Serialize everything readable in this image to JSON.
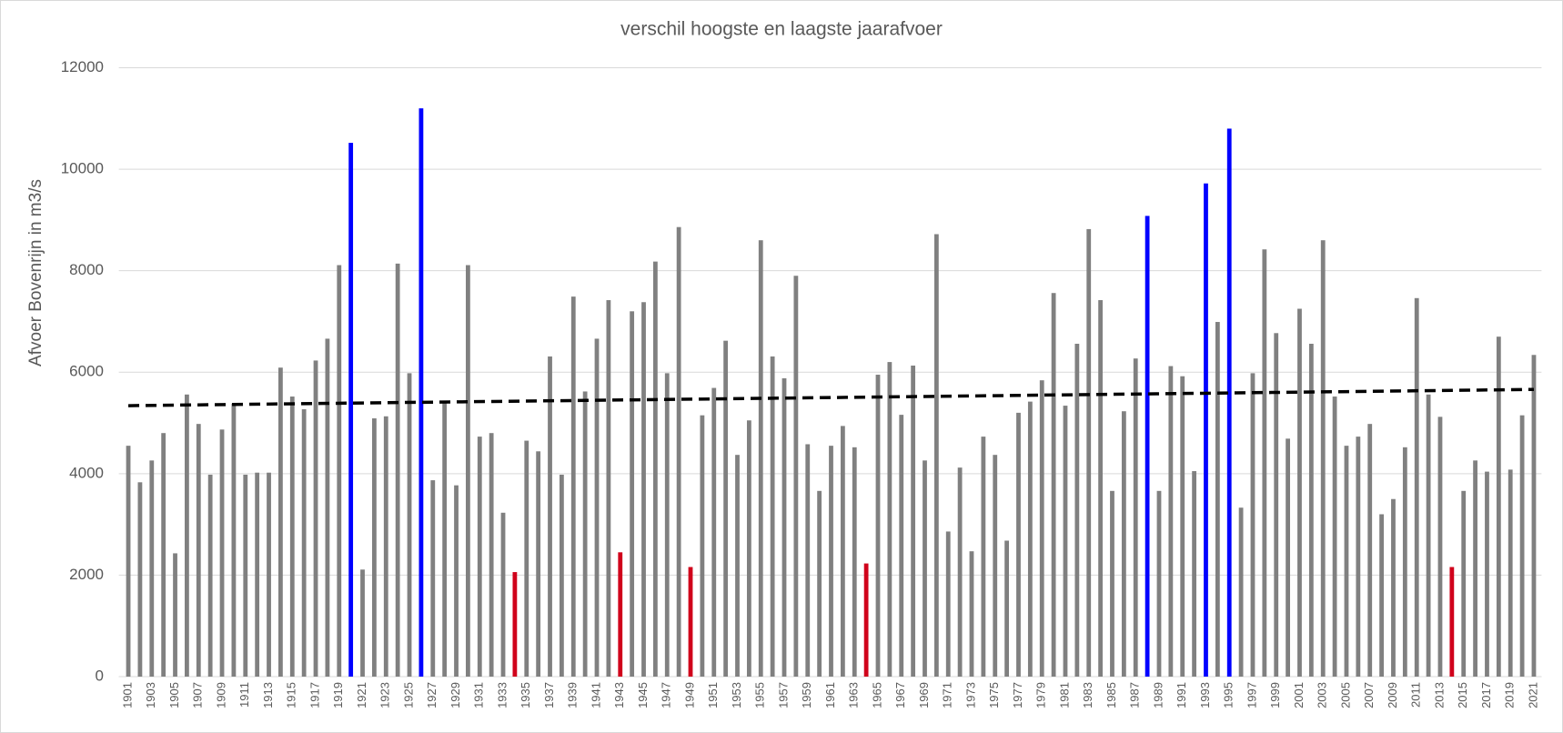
{
  "chart_data": {
    "type": "bar",
    "title": "verschil hoogste en laagste jaarafvoer",
    "y_label": "Afvoer Bovenrijn in m3/s",
    "categories": [
      "1901",
      null,
      "1903",
      null,
      "1905",
      null,
      "1907",
      null,
      "1909",
      null,
      "1911",
      null,
      "1913",
      null,
      "1915",
      null,
      "1917",
      null,
      "1919",
      null,
      "1921",
      null,
      "1923",
      null,
      "1925",
      null,
      "1927",
      null,
      "1929",
      null,
      "1931",
      null,
      "1933",
      null,
      "1935",
      null,
      "1937",
      null,
      "1939",
      null,
      "1941",
      null,
      "1943",
      null,
      "1945",
      null,
      "1947",
      null,
      "1949",
      null,
      "1951",
      null,
      "1953",
      null,
      "1955",
      null,
      "1957",
      null,
      "1959",
      null,
      "1961",
      null,
      "1963",
      null,
      "1965",
      null,
      "1967",
      null,
      "1969",
      null,
      "1971",
      null,
      "1973",
      null,
      "1975",
      null,
      "1977",
      null,
      "1979",
      null,
      "1981",
      null,
      "1983",
      null,
      "1985",
      null,
      "1987",
      null,
      "1989",
      null,
      "1991",
      null,
      "1993",
      null,
      "1995",
      null,
      "1997",
      null,
      "1999",
      null,
      "2001",
      null,
      "2003",
      null,
      "2005",
      null,
      "2007",
      null,
      "2009",
      null,
      "2011",
      null,
      "2013",
      null,
      "2015",
      null,
      "2017",
      null,
      "2019",
      null,
      "2021"
    ],
    "values": [
      4550,
      3830,
      4260,
      4800,
      2430,
      5560,
      4980,
      3980,
      4870,
      5380,
      3980,
      4020,
      4020,
      6090,
      5520,
      5270,
      6230,
      6660,
      8110,
      10520,
      2110,
      5090,
      5130,
      8140,
      5980,
      11200,
      3870,
      5400,
      3770,
      8110,
      4730,
      4800,
      3230,
      2060,
      4650,
      4440,
      6310,
      3980,
      7490,
      5620,
      6660,
      7420,
      2450,
      7200,
      7380,
      8180,
      5980,
      8860,
      2160,
      5150,
      5690,
      6620,
      4370,
      5050,
      8600,
      6310,
      5880,
      7900,
      4580,
      3660,
      4550,
      4940,
      4520,
      2230,
      5950,
      6200,
      5160,
      6130,
      4260,
      8720,
      2860,
      4120,
      2470,
      4730,
      4370,
      2680,
      5200,
      5420,
      5840,
      7560,
      5340,
      6560,
      8820,
      7420,
      3660,
      5230,
      6270,
      9080,
      3660,
      6120,
      5920,
      4050,
      9720,
      6990,
      10800,
      3330,
      5980,
      8420,
      6770,
      4690,
      7250,
      6560,
      8600,
      5520,
      4550,
      4730,
      4980,
      3200,
      3500,
      4520,
      7460,
      5560,
      5120,
      2160,
      3660,
      4260,
      4040,
      6700,
      4080,
      5150,
      6340
    ],
    "colors": [
      "#808080",
      "#808080",
      "#808080",
      "#808080",
      "#808080",
      "#808080",
      "#808080",
      "#808080",
      "#808080",
      "#808080",
      "#808080",
      "#808080",
      "#808080",
      "#808080",
      "#808080",
      "#808080",
      "#808080",
      "#808080",
      "#808080",
      "#0000ff",
      "#808080",
      "#808080",
      "#808080",
      "#808080",
      "#808080",
      "#0000ff",
      "#808080",
      "#808080",
      "#808080",
      "#808080",
      "#808080",
      "#808080",
      "#808080",
      "#d0021b",
      "#808080",
      "#808080",
      "#808080",
      "#808080",
      "#808080",
      "#808080",
      "#808080",
      "#808080",
      "#d0021b",
      "#808080",
      "#808080",
      "#808080",
      "#808080",
      "#808080",
      "#d0021b",
      "#808080",
      "#808080",
      "#808080",
      "#808080",
      "#808080",
      "#808080",
      "#808080",
      "#808080",
      "#808080",
      "#808080",
      "#808080",
      "#808080",
      "#808080",
      "#808080",
      "#d0021b",
      "#808080",
      "#808080",
      "#808080",
      "#808080",
      "#808080",
      "#808080",
      "#808080",
      "#808080",
      "#808080",
      "#808080",
      "#808080",
      "#808080",
      "#808080",
      "#808080",
      "#808080",
      "#808080",
      "#808080",
      "#808080",
      "#808080",
      "#808080",
      "#808080",
      "#808080",
      "#808080",
      "#0000ff",
      "#808080",
      "#808080",
      "#808080",
      "#808080",
      "#0000ff",
      "#808080",
      "#0000ff",
      "#808080",
      "#808080",
      "#808080",
      "#808080",
      "#808080",
      "#808080",
      "#808080",
      "#808080",
      "#808080",
      "#808080",
      "#808080",
      "#808080",
      "#808080",
      "#808080",
      "#808080",
      "#808080",
      "#808080",
      "#808080",
      "#d0021b",
      "#808080",
      "#808080",
      "#808080",
      "#808080",
      "#808080",
      "#808080",
      "#808080"
    ],
    "trend": [
      5340,
      5660
    ],
    "trend_color": "#000000",
    "ylim": [
      0,
      12000
    ],
    "yticks": [
      0,
      2000,
      4000,
      6000,
      8000,
      10000,
      12000
    ],
    "grid": true
  }
}
